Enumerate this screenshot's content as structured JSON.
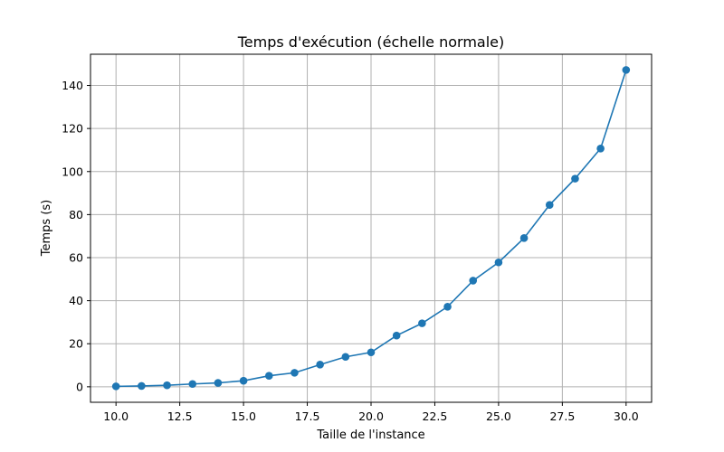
{
  "chart_data": {
    "type": "line",
    "title": "Temps d'exécution (échelle normale)",
    "xlabel": "Taille de l'instance",
    "ylabel": "Temps (s)",
    "xlim": [
      9.0,
      31.0
    ],
    "ylim": [
      -7.2,
      154.5
    ],
    "xticks": [
      10.0,
      12.5,
      15.0,
      17.5,
      20.0,
      22.5,
      25.0,
      27.5,
      30.0
    ],
    "xtick_labels": [
      "10.0",
      "12.5",
      "15.0",
      "17.5",
      "20.0",
      "22.5",
      "25.0",
      "27.5",
      "30.0"
    ],
    "yticks": [
      0,
      20,
      40,
      60,
      80,
      100,
      120,
      140
    ],
    "ytick_labels": [
      "0",
      "20",
      "40",
      "60",
      "80",
      "100",
      "120",
      "140"
    ],
    "grid": true,
    "series": [
      {
        "color": "#1f77b4",
        "marker": "circle",
        "x": [
          10,
          11,
          12,
          13,
          14,
          15,
          16,
          17,
          18,
          19,
          20,
          21,
          22,
          23,
          24,
          25,
          26,
          27,
          28,
          29,
          30
        ],
        "y": [
          0.2,
          0.4,
          0.7,
          1.3,
          1.8,
          2.8,
          5.1,
          6.5,
          10.3,
          13.9,
          16.0,
          23.8,
          29.5,
          37.2,
          49.3,
          57.8,
          69.1,
          84.5,
          96.7,
          110.7,
          147.2
        ]
      }
    ]
  }
}
